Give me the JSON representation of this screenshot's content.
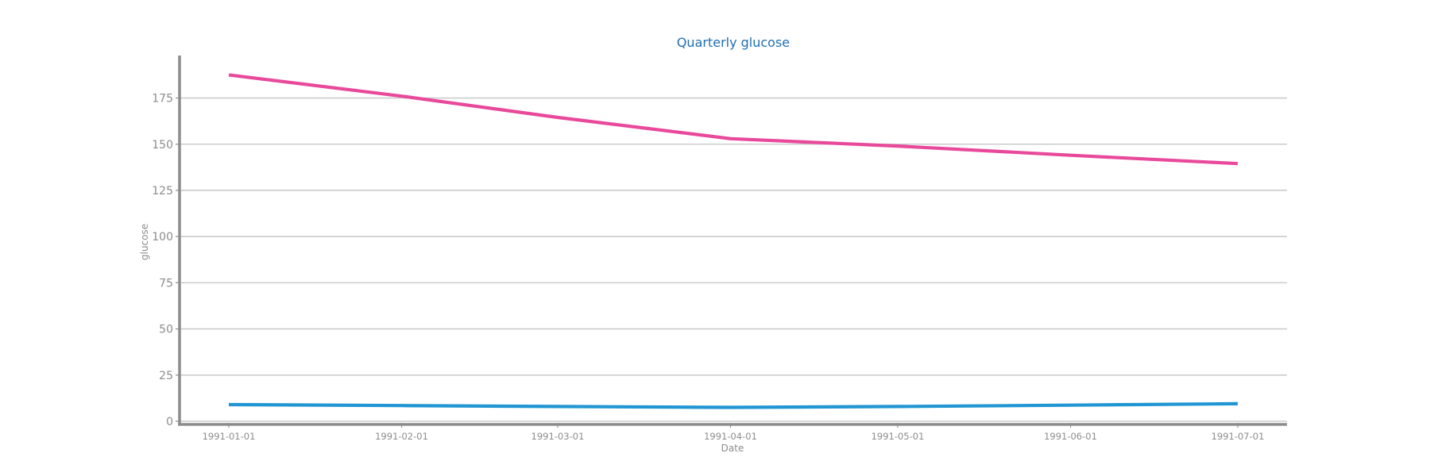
{
  "colors": {
    "title": "#1f6fb2",
    "axis": "#8c8c8c",
    "grid": "#cccccc",
    "tick_text": "#8c8c8c"
  },
  "chart_data": {
    "type": "line",
    "title": "Quarterly glucose",
    "xlabel": "Date",
    "ylabel": "glucose",
    "x": [
      "1991-01-01",
      "1991-02-01",
      "1991-03-01",
      "1991-04-01",
      "1991-05-01",
      "1991-06-01",
      "1991-07-01"
    ],
    "x_ticks": [
      "1991-01-01",
      "1991-02-01",
      "1991-03-01",
      "1991-04-01",
      "1991-05-01",
      "1991-06-01",
      "1991-07-01"
    ],
    "y_ticks": [
      0,
      25,
      50,
      75,
      100,
      125,
      150,
      175
    ],
    "ylim": [
      0,
      198
    ],
    "grid": "horizontal",
    "legend": "none",
    "series": [
      {
        "color": "#e8499a",
        "values": [
          187.5,
          176,
          164.5,
          153,
          149,
          144,
          139.5
        ]
      },
      {
        "color": "#2196d3",
        "values": [
          9,
          8.5,
          8,
          7.5,
          8,
          8.7,
          9.5
        ]
      }
    ]
  }
}
